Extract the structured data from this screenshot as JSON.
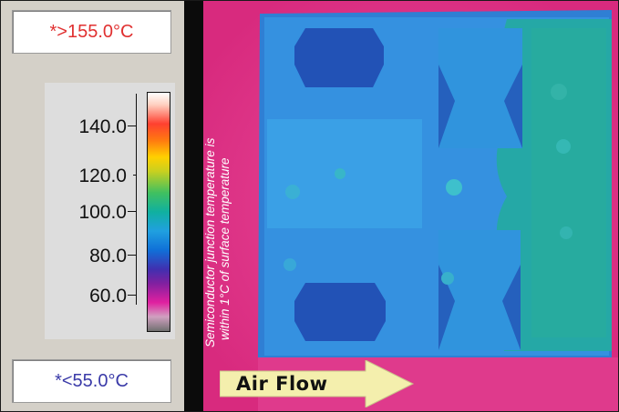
{
  "palette": {
    "max_label": "*>155.0°C",
    "min_label": "*<55.0°C",
    "ticks": [
      {
        "label": "140.0"
      },
      {
        "label": "120.0"
      },
      {
        "label": "100.0"
      },
      {
        "label": "80.0"
      },
      {
        "label": "60.0"
      }
    ]
  },
  "image": {
    "caption_line1": "Semiconductor junction temperature is",
    "caption_line2": "within 1°C of surface temperature",
    "airflow_label": "Air Flow"
  },
  "colors": {
    "background_hot": "#e3358f",
    "board_blue": "#2f86d9",
    "device_dark": "#1f4fb8",
    "green_zone": "#2ab0a2",
    "arrow_fill": "#f5f0b0"
  }
}
